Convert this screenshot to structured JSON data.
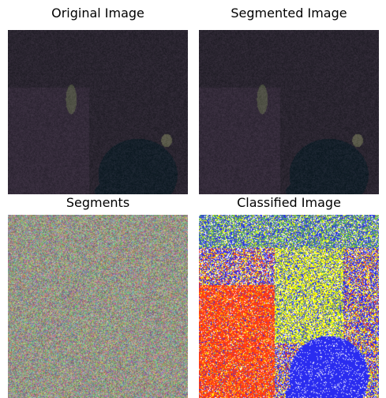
{
  "panels": [
    {
      "title": "Original Image",
      "kind": "satellite"
    },
    {
      "title": "Segmented Image",
      "kind": "satellite"
    },
    {
      "title": "Segments",
      "kind": "segments-noise"
    },
    {
      "title": "Classified Image",
      "kind": "classified"
    }
  ],
  "classes_colors": {
    "water": "#2a2cf0",
    "vegetation": "#5bb85a",
    "urban": "#ff3c14",
    "bare": "#ffff00",
    "other": "#ffffff"
  },
  "satellite_palette": {
    "base": "#2a2530",
    "dark_water": "#15202a",
    "light_lake": "#5a5a4a"
  }
}
